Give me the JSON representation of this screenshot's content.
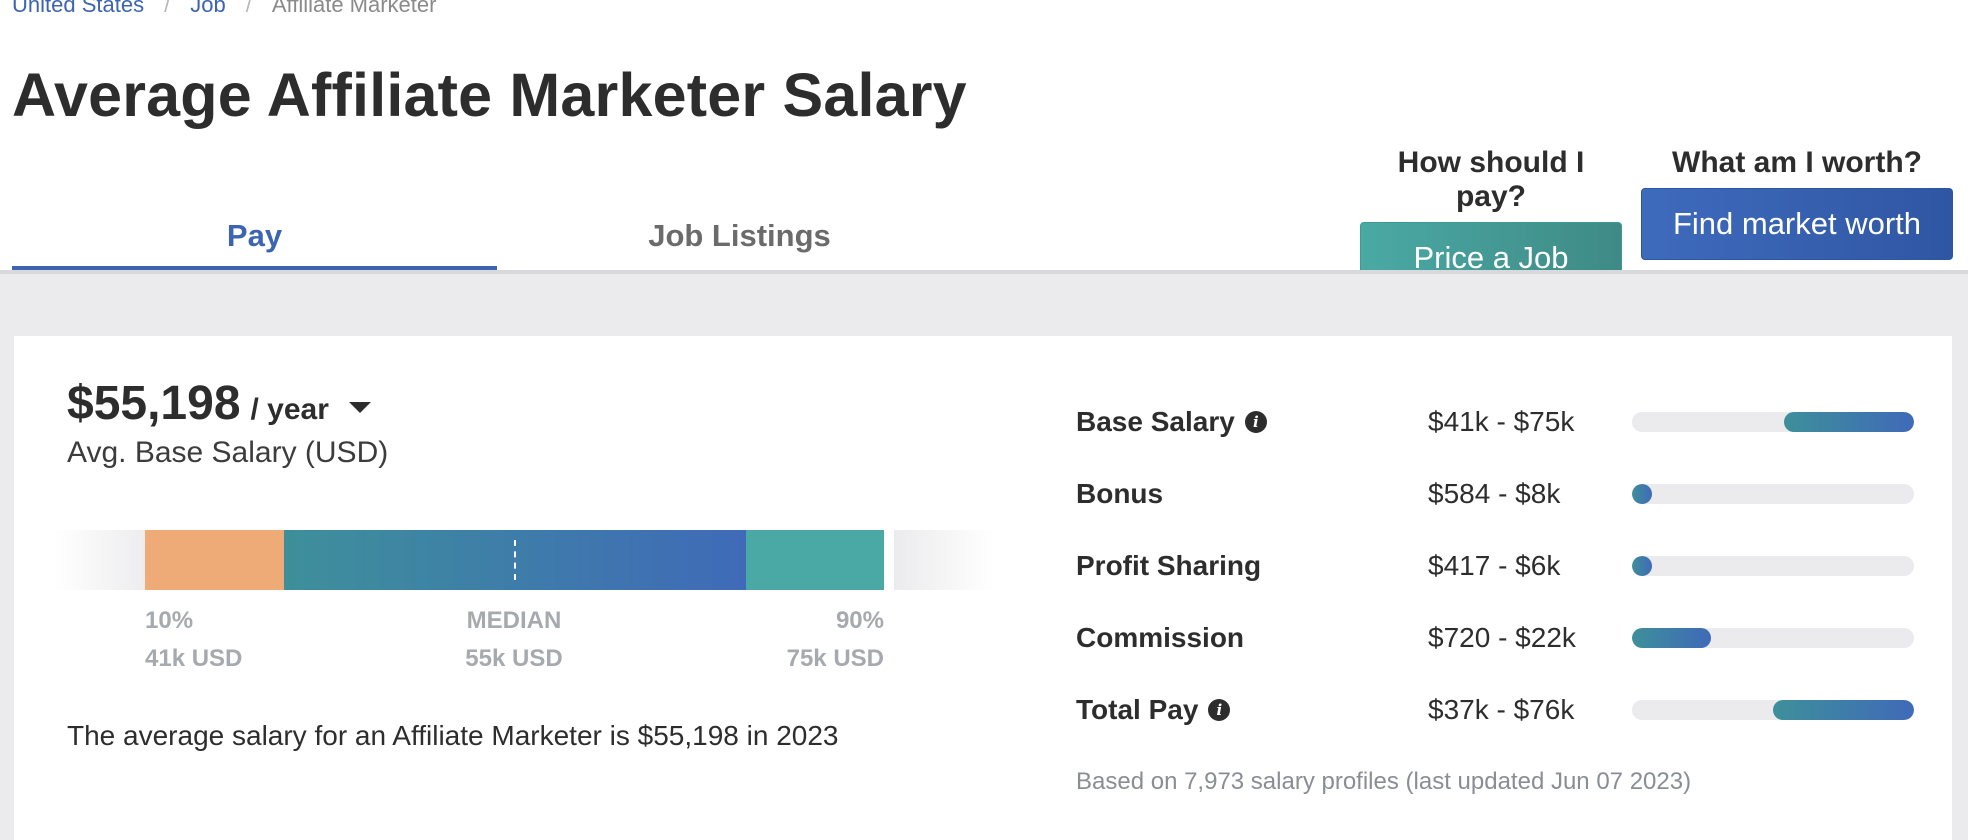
{
  "breadcrumb": {
    "items": [
      "United States",
      "Job",
      "Affiliate Marketer"
    ],
    "separator": "/"
  },
  "page": {
    "title": "Average Affiliate Marketer Salary"
  },
  "tabs": [
    {
      "label": "Pay",
      "active": true
    },
    {
      "label": "Job Listings",
      "active": false
    }
  ],
  "cta": {
    "price": {
      "question": "How should I pay?",
      "button": "Price a Job"
    },
    "worth": {
      "question": "What am I worth?",
      "button": "Find market worth"
    }
  },
  "salary": {
    "amount": "$55,198",
    "period": "/ year",
    "label": "Avg. Base Salary (USD)",
    "range": {
      "p10": {
        "label": "10%",
        "value": "41k USD"
      },
      "median": {
        "label": "MEDIAN",
        "value": "55k USD"
      },
      "p90": {
        "label": "90%",
        "value": "75k USD"
      }
    },
    "summary": "The average salary for an Affiliate Marketer is $55,198 in 2023"
  },
  "pay_breakdown": {
    "rows": [
      {
        "name": "Base Salary",
        "info": true,
        "range": "$41k - $75k",
        "start": 0.54,
        "end": 1.0
      },
      {
        "name": "Bonus",
        "info": false,
        "range": "$584 - $8k",
        "start": 0.0,
        "end": 0.05
      },
      {
        "name": "Profit Sharing",
        "info": false,
        "range": "$417 - $6k",
        "start": 0.0,
        "end": 0.04
      },
      {
        "name": "Commission",
        "info": false,
        "range": "$720 - $22k",
        "start": 0.0,
        "end": 0.28
      },
      {
        "name": "Total Pay",
        "info": true,
        "range": "$37k - $76k",
        "start": 0.5,
        "end": 1.0
      }
    ],
    "note": "Based on 7,973 salary profiles (last updated Jun 07 2023)"
  },
  "colors": {
    "brand_blue": "#3c64b1",
    "teal": "#4aa9a4",
    "orange": "#eeab78",
    "gray_band": "#ebebed"
  },
  "icons": {
    "info": "info-icon",
    "dropdown": "caret-down-icon"
  }
}
